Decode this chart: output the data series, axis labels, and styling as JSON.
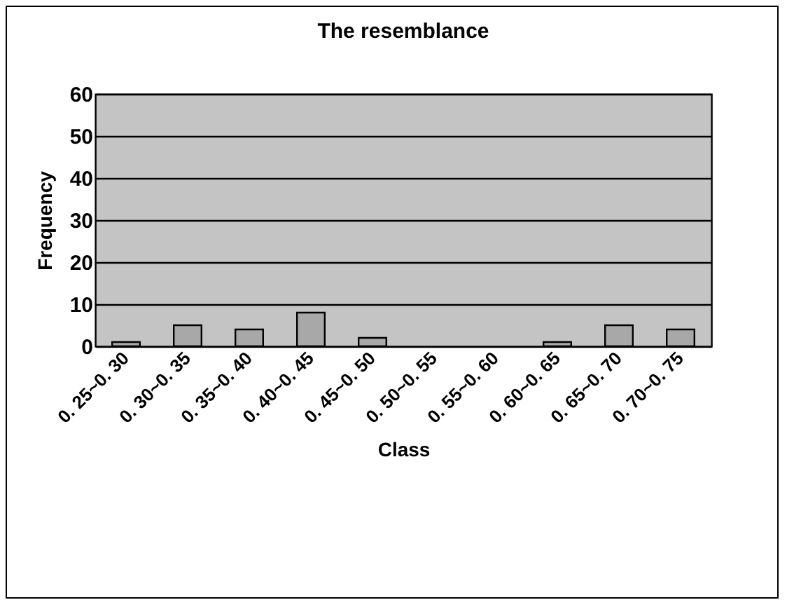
{
  "chart_data": {
    "type": "bar",
    "title": "The resemblance",
    "xlabel": "Class",
    "ylabel": "Frequency",
    "categories": [
      "0. 25~0. 30",
      "0. 30~0. 35",
      "0. 35~0. 40",
      "0. 40~0. 45",
      "0. 45~0. 50",
      "0. 50~0. 55",
      "0. 55~0. 60",
      "0. 60~0. 65",
      "0. 65~0. 70",
      "0. 70~0. 75"
    ],
    "values": [
      1,
      5,
      4,
      8,
      2,
      0,
      0,
      1,
      5,
      4
    ],
    "color": "#a8a8a8",
    "ylim": [
      0,
      60
    ],
    "yticks": [
      0,
      10,
      20,
      30,
      40,
      50,
      60
    ],
    "grid": "y"
  }
}
